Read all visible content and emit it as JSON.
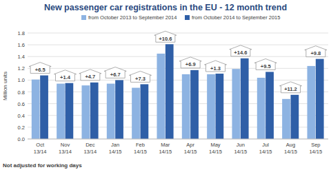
{
  "chart_data": {
    "type": "bar",
    "title": "New passenger car registrations in the EU - 12 month trend",
    "y_label": "Million units",
    "footnote": "Not adjusted for working days",
    "categories": [
      "Oct\n13/14",
      "Nov\n13/14",
      "Dec\n13/14",
      "Jan\n14/15",
      "Feb\n14/15",
      "Mar\n14/15",
      "Apr\n14/15",
      "May\n14/15",
      "Jun\n14/15",
      "Jul\n14/15",
      "Aug\n14/15",
      "Sep\n14/15"
    ],
    "series": [
      {
        "name": "from October 2013 to September 2014",
        "color": "#8db3e2",
        "values": [
          1.01,
          0.94,
          0.91,
          0.94,
          0.87,
          1.45,
          1.1,
          1.1,
          1.19,
          1.04,
          0.68,
          1.24
        ]
      },
      {
        "name": "from October 2014 to September 2015",
        "color": "#2f5fa7",
        "values": [
          1.08,
          0.95,
          0.96,
          1.0,
          0.93,
          1.61,
          1.17,
          1.11,
          1.37,
          1.14,
          0.75,
          1.36
        ]
      }
    ],
    "annotations": [
      "+6.5",
      "+1.4",
      "+4.7",
      "+6.7",
      "+7.3",
      "+10.6",
      "+6.9",
      "+1.3",
      "+14.6",
      "+9.5",
      "+11.2",
      "+9.8"
    ],
    "ylim": [
      0,
      1.8
    ],
    "yticks": [
      {
        "value": 0,
        "label": "0.0"
      },
      0.2,
      0.4,
      0.6,
      0.8,
      {
        "value": 1,
        "label": "1.0"
      },
      1.2,
      1.4,
      1.6,
      1.8
    ],
    "grid": true,
    "legend": "top"
  }
}
